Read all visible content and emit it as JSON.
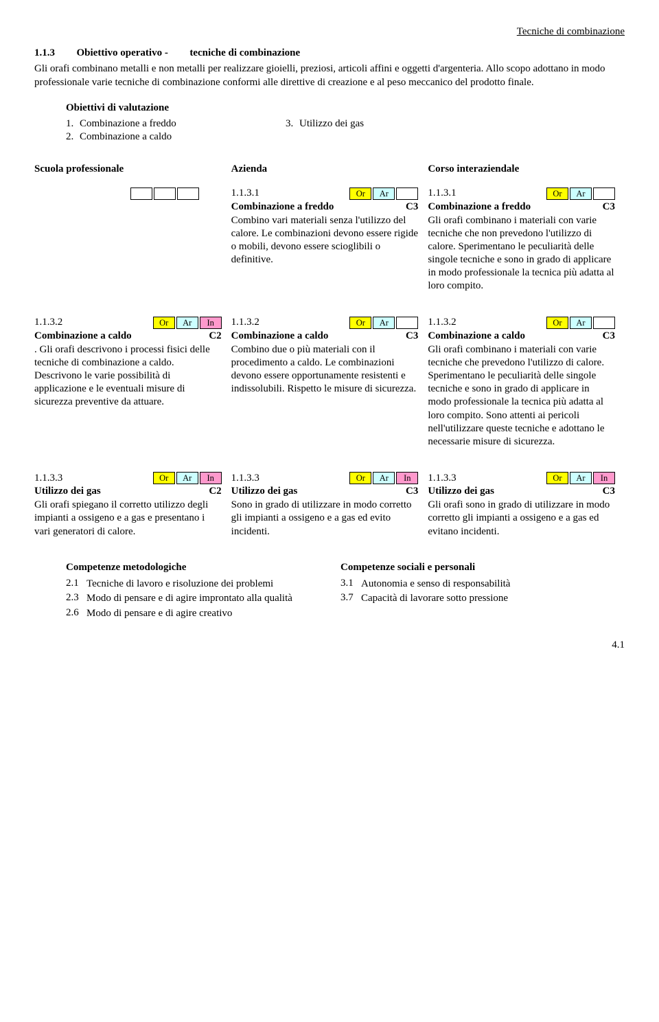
{
  "header_right": "Tecniche di combinazione",
  "heading_num": "1.1.3",
  "heading_mid": "Obiettivo operativo  -",
  "heading_end": "tecniche di combinazione",
  "intro": "Gli orafi combinano metalli e non metalli per realizzare gioielli, preziosi, articoli affini e oggetti d'argenteria. Allo scopo adottano in modo professionale varie tecniche di combinazione conformi alle direttive di creazione e al peso meccanico del prodotto finale.",
  "objectives_title": "Obiettivi di valutazione",
  "objectives_col1": [
    {
      "n": "1.",
      "t": "Combinazione a freddo"
    },
    {
      "n": "2.",
      "t": "Combinazione a caldo"
    }
  ],
  "objectives_col2": [
    {
      "n": "3.",
      "t": "Utilizzo dei gas"
    }
  ],
  "headers": {
    "c1": "Scuola professionale",
    "c2": "Azienda",
    "c3": "Corso interaziendale"
  },
  "tags": {
    "or": "Or",
    "ar": "Ar",
    "in": "In"
  },
  "rows": [
    {
      "c1": null,
      "c2": {
        "code": "1.1.3.1",
        "tags": [
          "or",
          "ar",
          "blank"
        ],
        "title": "Combinazione a freddo",
        "level": "C3",
        "desc": "Combino vari materiali senza l'utilizzo del calore. Le combinazioni devono essere rigide o mobili, devono essere scioglibili o definitive."
      },
      "c3": {
        "code": "1.1.3.1",
        "tags": [
          "or",
          "ar",
          "blank"
        ],
        "title": "Combinazione a freddo",
        "level": "C3",
        "desc": "Gli orafi combinano i materiali con varie tecniche che non prevedono l'utilizzo di calore. Sperimentano le peculiarità delle singole tecniche e sono in grado di applicare in modo professionale la tecnica più adatta al loro compito."
      }
    },
    {
      "c1": {
        "code": "1.1.3.2",
        "tags": [
          "or",
          "ar",
          "in"
        ],
        "title": "Combinazione a caldo",
        "level": "C2",
        "desc": ". Gli orafi descrivono i processi fisici delle tecniche di combinazione a caldo. Descrivono le varie possibilità di applicazione e le eventuali misure di sicurezza preventive da attuare."
      },
      "c2": {
        "code": "1.1.3.2",
        "tags": [
          "or",
          "ar",
          "blank"
        ],
        "title": "Combinazione a caldo",
        "level": "C3",
        "desc": "Combino due o più materiali con il procedimento a caldo. Le combinazioni devono essere opportunamente resistenti e indissolubili. Rispetto le misure di sicurezza."
      },
      "c3": {
        "code": "1.1.3.2",
        "tags": [
          "or",
          "ar",
          "blank"
        ],
        "title": "Combinazione a caldo",
        "level": "C3",
        "desc": "Gli orafi combinano i materiali con varie tecniche che prevedono l'utilizzo di calore. Sperimentano le peculiarità delle singole tecniche e sono in grado di applicare in modo professionale la tecnica più adatta al loro compito. Sono attenti ai pericoli nell'utilizzare queste tecniche e adottano le necessarie misure di sicurezza."
      }
    },
    {
      "c1": {
        "code": "1.1.3.3",
        "tags": [
          "or",
          "ar",
          "in"
        ],
        "title": "Utilizzo dei gas",
        "level": "C2",
        "desc": "Gli orafi spiegano il corretto utilizzo degli impianti a ossigeno e a gas e presentano i vari generatori di calore."
      },
      "c2": {
        "code": "1.1.3.3",
        "tags": [
          "or",
          "ar",
          "in"
        ],
        "title": "Utilizzo dei gas",
        "level": "C3",
        "desc": "Sono in grado di utilizzare in modo corretto gli impianti a ossigeno e a gas ed evito incidenti."
      },
      "c3": {
        "code": "1.1.3.3",
        "tags": [
          "or",
          "ar",
          "in"
        ],
        "title": "Utilizzo dei gas",
        "level": "C3",
        "desc": "Gli orafi sono in grado di utilizzare in modo corretto gli impianti a ossigeno e a gas ed evitano incidenti."
      }
    }
  ],
  "comp": {
    "left_title": "Competenze metodologiche",
    "right_title": "Competenze sociali e personali",
    "left": [
      {
        "n": "2.1",
        "t": "Tecniche di lavoro e risoluzione dei problemi"
      },
      {
        "n": "2.3",
        "t": "Modo di pensare e di agire improntato alla qualità"
      },
      {
        "n": "2.6",
        "t": "Modo di pensare e di agire creativo"
      }
    ],
    "right": [
      {
        "n": "3.1",
        "t": "Autonomia e senso di responsabilità"
      },
      {
        "n": "3.7",
        "t": "Capacità di lavorare sotto pressione"
      }
    ]
  },
  "page": "4.1"
}
